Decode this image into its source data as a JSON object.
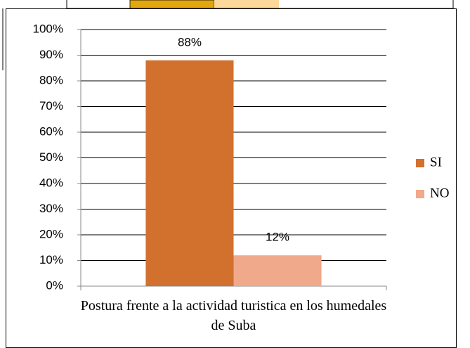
{
  "chart_data": {
    "type": "bar",
    "categories": [
      "Postura frente a la actividad turistica en los humedales de Suba"
    ],
    "series": [
      {
        "name": "SI",
        "color": "#d2702e",
        "values": [
          88
        ],
        "value_labels": [
          "88%"
        ]
      },
      {
        "name": "NO",
        "color": "#f0a98a",
        "values": [
          12
        ],
        "value_labels": [
          "12%"
        ]
      }
    ],
    "ylim": [
      0,
      100
    ],
    "yticks": [
      {
        "value": 0,
        "label": "0%"
      },
      {
        "value": 10,
        "label": "10%"
      },
      {
        "value": 20,
        "label": "20%"
      },
      {
        "value": 30,
        "label": "30%"
      },
      {
        "value": 40,
        "label": "40%"
      },
      {
        "value": 50,
        "label": "50%"
      },
      {
        "value": 60,
        "label": "60%"
      },
      {
        "value": 70,
        "label": "70%"
      },
      {
        "value": 80,
        "label": "80%"
      },
      {
        "value": 90,
        "label": "90%"
      },
      {
        "value": 100,
        "label": "100%"
      }
    ],
    "grid": true,
    "legend": "right"
  }
}
